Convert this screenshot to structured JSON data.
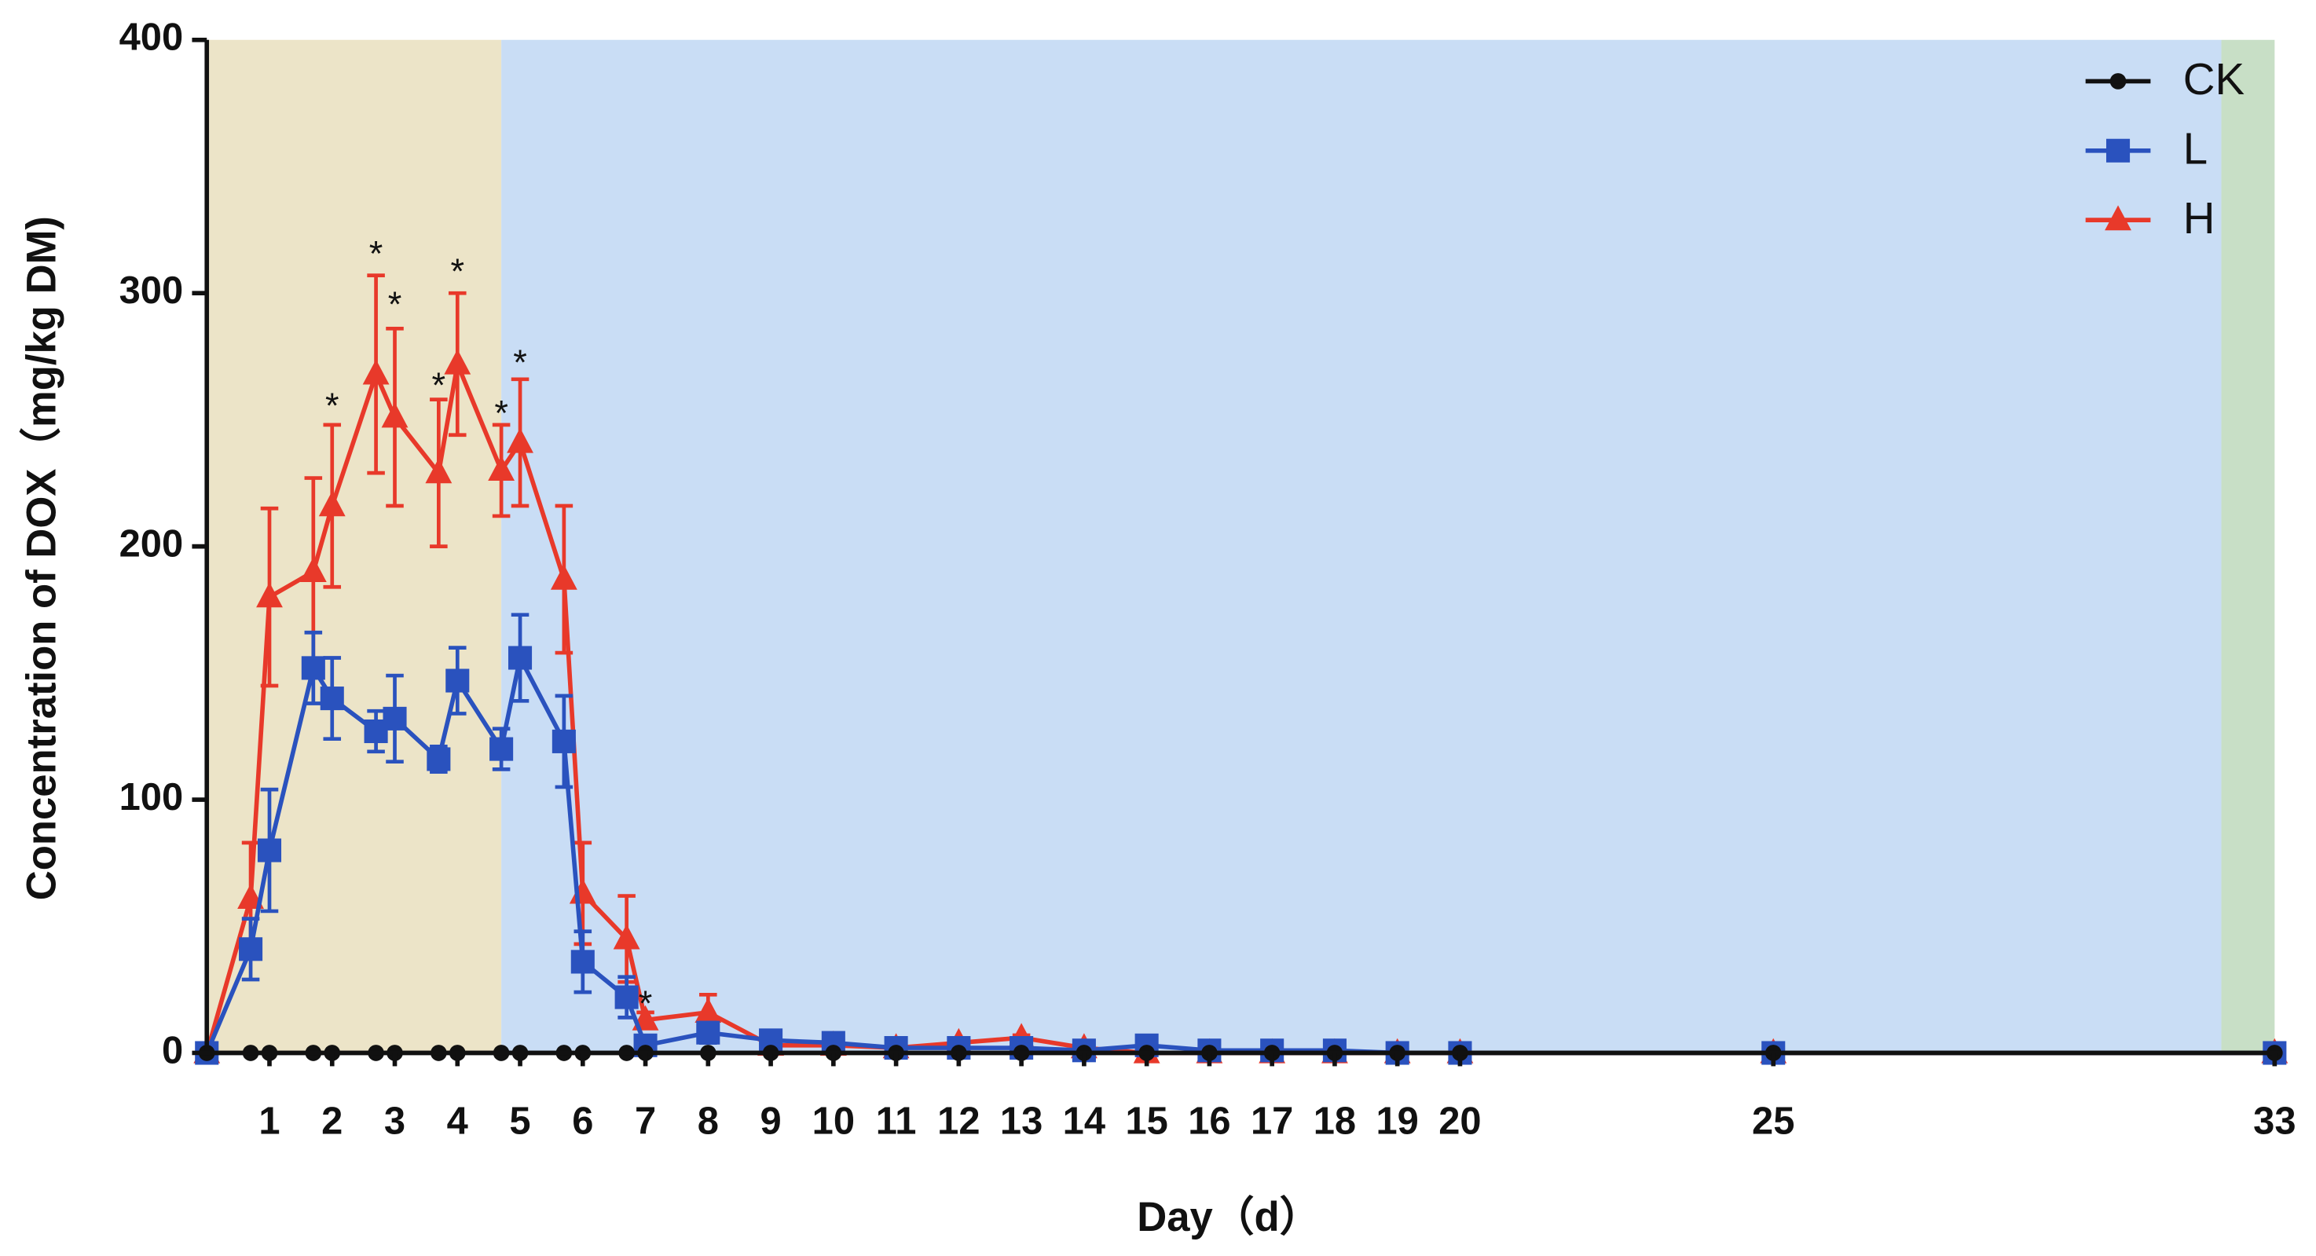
{
  "chart_data": {
    "type": "line",
    "x_label": "Day（d）",
    "y_label": "Concentration of DOX（mg/kg DM)",
    "xlim": [
      0,
      33
    ],
    "ylim": [
      0,
      400
    ],
    "xticks": [
      1,
      2,
      3,
      4,
      5,
      6,
      7,
      8,
      9,
      10,
      11,
      12,
      13,
      14,
      15,
      16,
      17,
      18,
      19,
      20,
      25,
      33
    ],
    "yticks": [
      0,
      100,
      200,
      300,
      400
    ],
    "legend": "top-right",
    "background_bands": [
      {
        "x": [
          0,
          4.7
        ],
        "color": "#ece4c8"
      },
      {
        "x": [
          4.7,
          32.15
        ],
        "color": "#c9ddf5"
      },
      {
        "x": [
          32.15,
          33
        ],
        "color": "#c8dfc6"
      }
    ],
    "x": [
      0,
      0.7,
      1,
      1.7,
      2,
      2.7,
      3,
      3.7,
      4,
      4.7,
      5,
      5.7,
      6,
      6.7,
      7,
      8,
      9,
      10,
      11,
      12,
      13,
      14,
      15,
      16,
      17,
      18,
      19,
      20,
      25,
      33
    ],
    "series": [
      {
        "name": "CK",
        "color": "#111111",
        "marker": "circle",
        "values": [
          0,
          0,
          0,
          0,
          0,
          0,
          0,
          0,
          0,
          0,
          0,
          0,
          0,
          0,
          0,
          0,
          0,
          0,
          0,
          0,
          0,
          0,
          0,
          0,
          0,
          0,
          0,
          0,
          0,
          0
        ],
        "errors": [
          0,
          0,
          0,
          0,
          0,
          0,
          0,
          0,
          0,
          0,
          0,
          0,
          0,
          0,
          0,
          0,
          0,
          0,
          0,
          0,
          0,
          0,
          0,
          0,
          0,
          0,
          0,
          0,
          0,
          0
        ]
      },
      {
        "name": "L",
        "color": "#2a52be",
        "marker": "square",
        "values": [
          0,
          41,
          80,
          152,
          140,
          127,
          132,
          116,
          147,
          120,
          156,
          123,
          36,
          22,
          3,
          8,
          5,
          4,
          2,
          2,
          2,
          1,
          3,
          1,
          1,
          1,
          0,
          0,
          0,
          0
        ],
        "errors": [
          0,
          12,
          24,
          14,
          16,
          8,
          17,
          5,
          13,
          8,
          17,
          18,
          12,
          8,
          2,
          4,
          1,
          1,
          1,
          1,
          1,
          1,
          1,
          1,
          1,
          1,
          1,
          1,
          1,
          1
        ]
      },
      {
        "name": "H",
        "color": "#e8392a",
        "marker": "triangle",
        "values": [
          0,
          61,
          180,
          190,
          216,
          268,
          251,
          229,
          272,
          230,
          241,
          187,
          63,
          45,
          13,
          16,
          3,
          3,
          2,
          4,
          6,
          2,
          0,
          0,
          0,
          0,
          0,
          0,
          0,
          0
        ],
        "errors": [
          0,
          22,
          35,
          37,
          32,
          39,
          35,
          29,
          28,
          18,
          25,
          29,
          20,
          17,
          3,
          7,
          1,
          1,
          1,
          1,
          1,
          1,
          1,
          1,
          1,
          1,
          1,
          1,
          1,
          1
        ]
      }
    ],
    "annotations": [
      {
        "text": "*",
        "x": 2,
        "y": 258
      },
      {
        "text": "*",
        "x": 2.7,
        "y": 318
      },
      {
        "text": "*",
        "x": 3,
        "y": 298
      },
      {
        "text": "*",
        "x": 3.7,
        "y": 266
      },
      {
        "text": "*",
        "x": 4,
        "y": 311
      },
      {
        "text": "*",
        "x": 4.7,
        "y": 255
      },
      {
        "text": "*",
        "x": 5,
        "y": 275
      },
      {
        "text": "*",
        "x": 7,
        "y": 22
      }
    ]
  }
}
